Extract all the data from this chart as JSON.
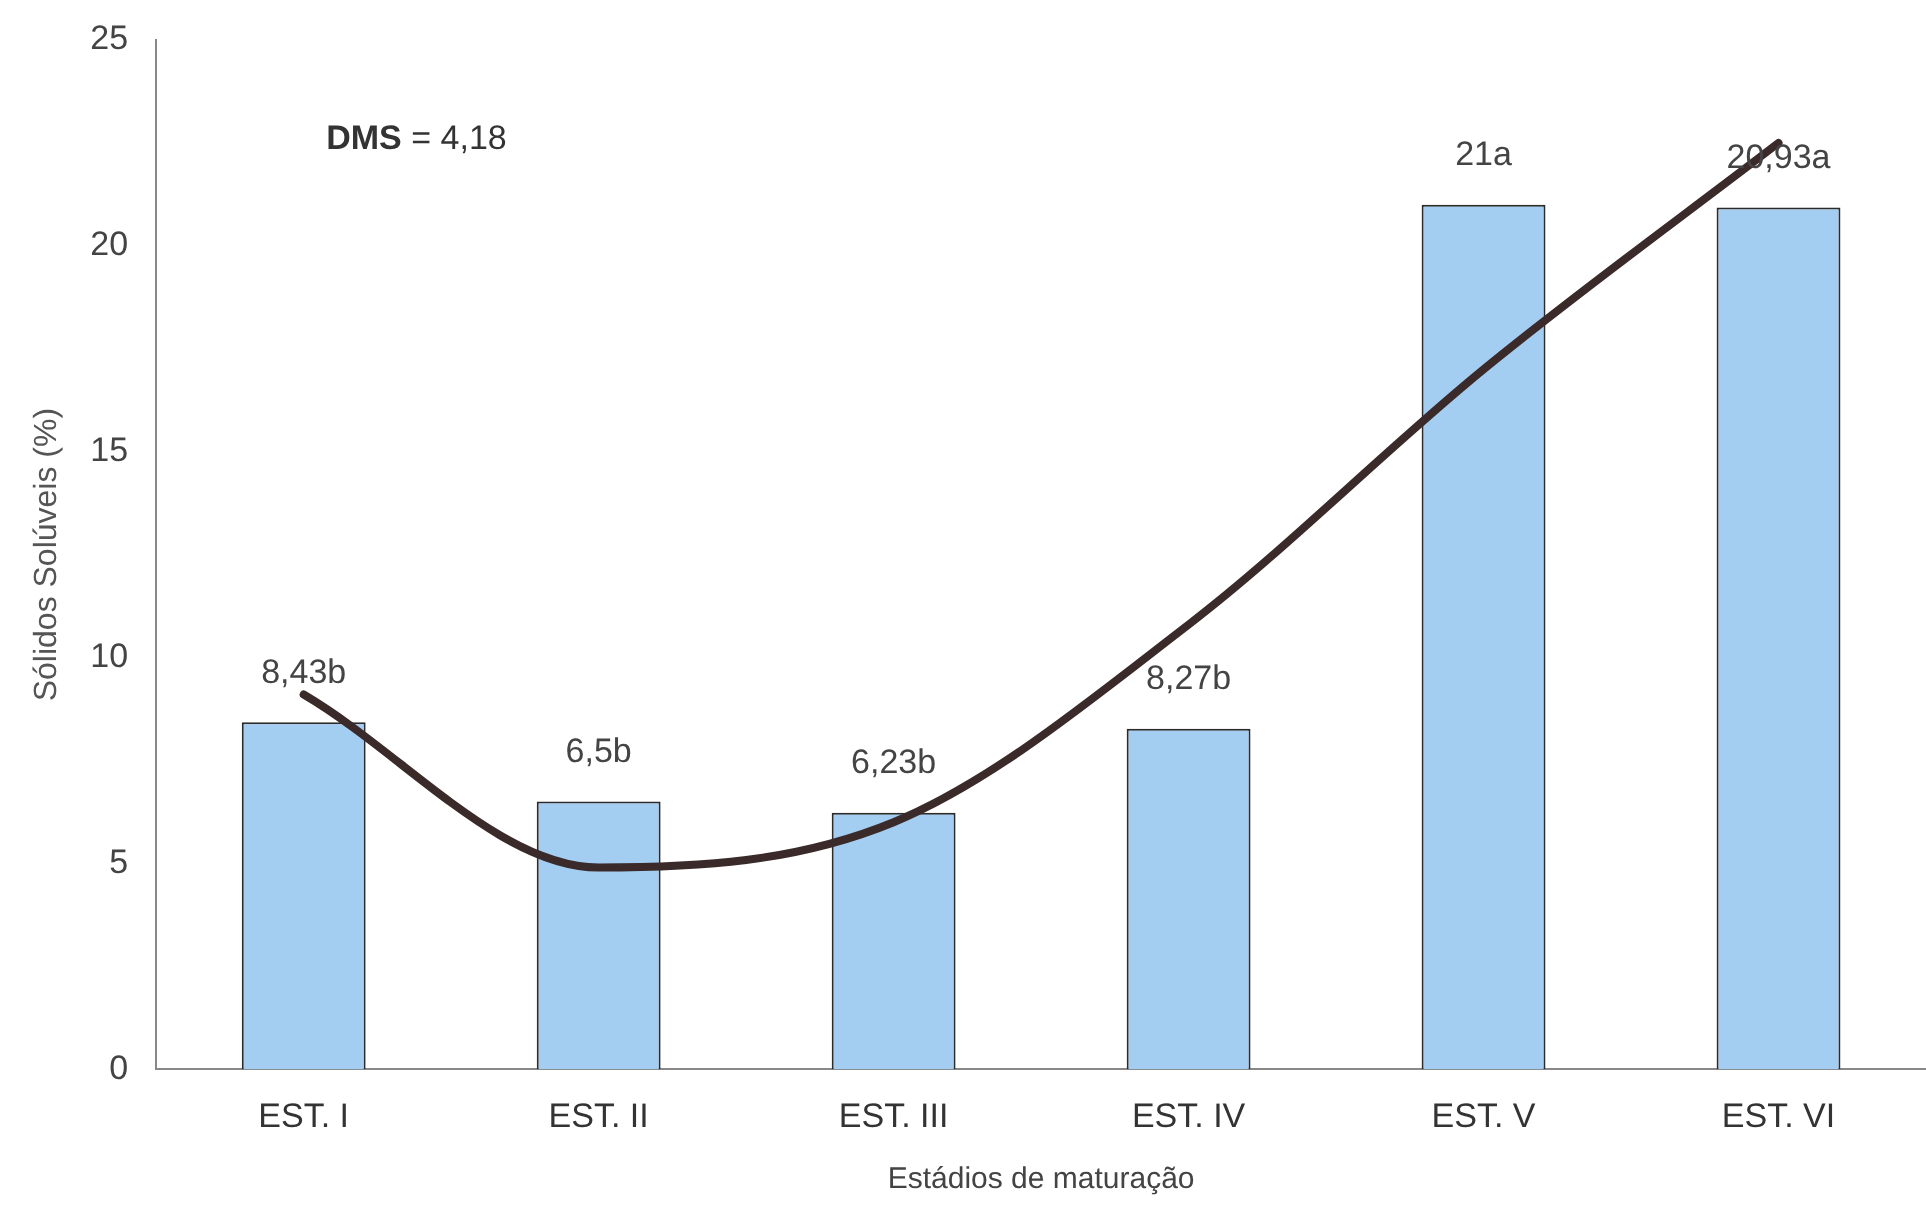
{
  "chart_data": {
    "type": "bar",
    "xlabel": "Estádios de maturação",
    "ylabel": "Sólidos Solúveis (%)",
    "categories": [
      "EST. I",
      "EST. II",
      "EST. III",
      "EST. IV",
      "EST. V",
      "EST. VI"
    ],
    "series": [
      {
        "color": "#a4cdf2",
        "values": [
          8.43,
          6.5,
          6.23,
          8.27,
          21,
          20.93
        ],
        "value_labels": [
          "8,43b",
          "6,5b",
          "6,23b",
          "8,27b",
          "21a",
          "20,93a"
        ]
      },
      {
        "type": "line",
        "color": "#3a2a2a",
        "values": [
          9.1,
          4.9,
          6.0,
          10.8,
          17.0,
          22.5
        ]
      }
    ],
    "ylim": [
      0,
      25
    ],
    "yticks": [
      0,
      5,
      10,
      15,
      20,
      25
    ],
    "grid": false,
    "legend": false,
    "marker": "none",
    "annotations": [
      "DMS = 4,18"
    ]
  }
}
